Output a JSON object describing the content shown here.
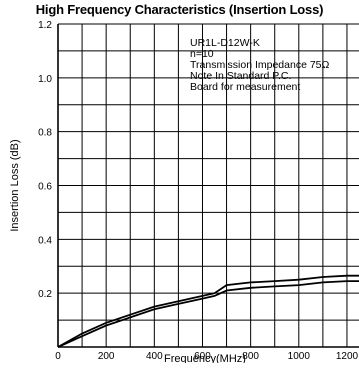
{
  "chart_data": {
    "type": "line",
    "title": "High Frequency Characteristics (Insertion Loss)",
    "xlabel": "Frequency(MHz)",
    "ylabel": "Insertion Loss (dB)",
    "xlim": [
      0,
      1200
    ],
    "ylim": [
      0,
      1.2
    ],
    "x_ticks": [
      "0",
      "200",
      "400",
      "600",
      "800",
      "1000",
      "1200"
    ],
    "y_ticks": [
      "0.2",
      "0.4",
      "0.6",
      "0.8",
      "1.0",
      "1.2"
    ],
    "grid": true,
    "annotations": [
      "UR1L-D12W-K",
      "n=10",
      "Transmission Impedance 75Ω",
      "Note In Standard P.C.",
      "Board for measurement"
    ],
    "series": [
      {
        "x": [
          0,
          100,
          200,
          300,
          400,
          500,
          600,
          650,
          700,
          800,
          900,
          1000,
          1100,
          1200,
          1250
        ],
        "values": [
          0.0,
          0.05,
          0.09,
          0.12,
          0.15,
          0.17,
          0.19,
          0.2,
          0.23,
          0.24,
          0.245,
          0.25,
          0.26,
          0.265,
          0.265
        ]
      },
      {
        "x": [
          0,
          100,
          200,
          300,
          400,
          500,
          600,
          650,
          700,
          800,
          900,
          1000,
          1100,
          1200,
          1250
        ],
        "values": [
          0.0,
          0.04,
          0.08,
          0.11,
          0.14,
          0.16,
          0.18,
          0.19,
          0.21,
          0.22,
          0.225,
          0.23,
          0.24,
          0.245,
          0.245
        ]
      }
    ]
  }
}
